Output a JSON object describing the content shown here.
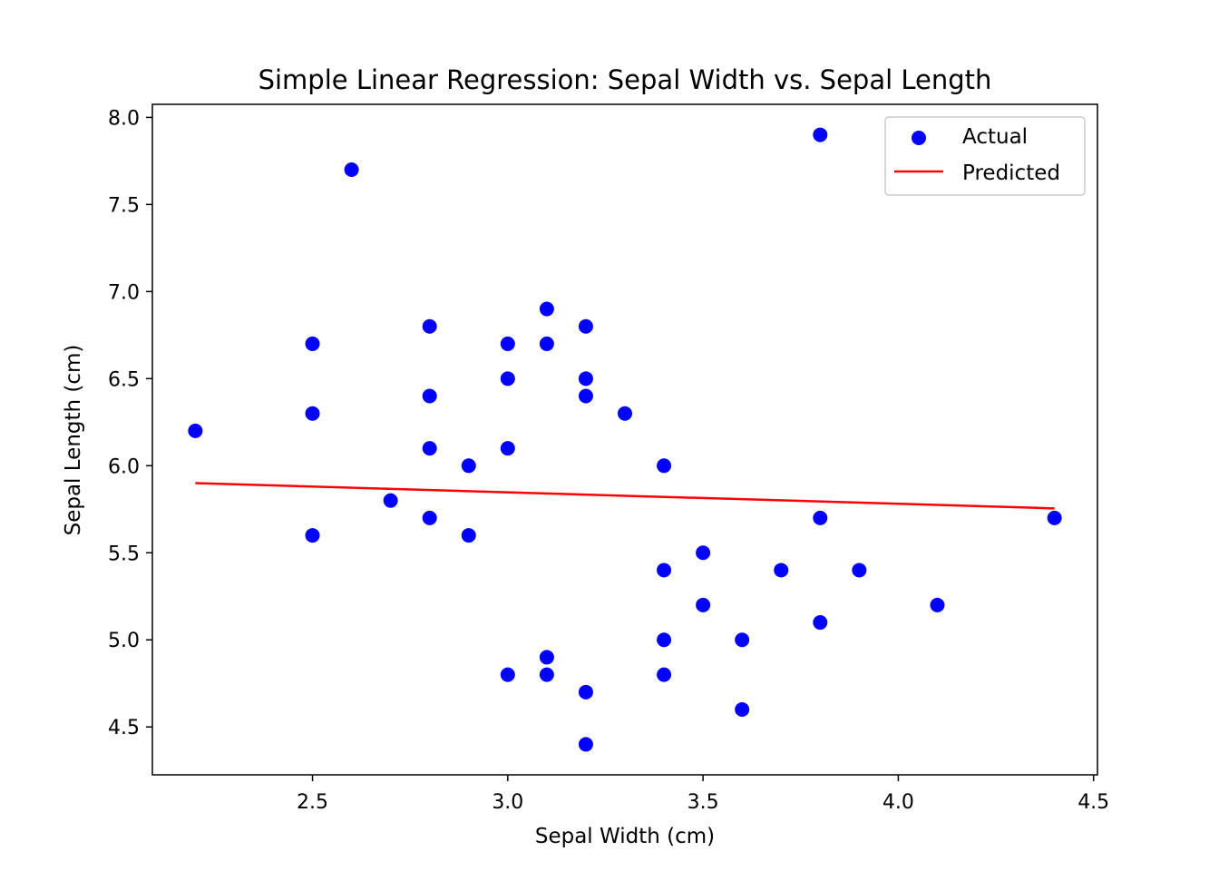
{
  "chart_data": {
    "type": "scatter",
    "title": "Simple Linear Regression: Sepal Width vs. Sepal Length",
    "xlabel": "Sepal Width (cm)",
    "ylabel": "Sepal Length (cm)",
    "xlim": [
      2.09,
      4.51
    ],
    "ylim": [
      4.225,
      8.075
    ],
    "xticks": [
      2.5,
      3.0,
      3.5,
      4.0,
      4.5
    ],
    "yticks": [
      4.5,
      5.0,
      5.5,
      6.0,
      6.5,
      7.0,
      7.5,
      8.0
    ],
    "xtick_labels": [
      "2.5",
      "3.0",
      "3.5",
      "4.0",
      "4.5"
    ],
    "ytick_labels": [
      "4.5",
      "5.0",
      "5.5",
      "6.0",
      "6.5",
      "7.0",
      "7.5",
      "8.0"
    ],
    "grid": false,
    "legend": {
      "placement": "top-right",
      "entries": [
        {
          "label": "Actual",
          "kind": "marker",
          "color": "#0000ff"
        },
        {
          "label": "Predicted",
          "kind": "line",
          "color": "#ff0000"
        }
      ]
    },
    "series": [
      {
        "name": "Actual",
        "kind": "scatter",
        "color": "#0000ff",
        "x": [
          2.2,
          2.5,
          2.5,
          2.5,
          2.6,
          2.7,
          2.8,
          2.8,
          2.8,
          2.8,
          2.9,
          2.9,
          3.0,
          3.0,
          3.0,
          3.0,
          3.1,
          3.1,
          3.1,
          3.1,
          3.2,
          3.2,
          3.2,
          3.2,
          3.2,
          3.3,
          3.4,
          3.4,
          3.4,
          3.4,
          3.5,
          3.5,
          3.6,
          3.6,
          3.7,
          3.8,
          3.8,
          3.8,
          3.9,
          4.1,
          4.4
        ],
        "y": [
          6.2,
          6.7,
          6.3,
          5.6,
          7.7,
          5.8,
          6.8,
          6.4,
          6.1,
          5.7,
          6.0,
          5.6,
          6.7,
          6.5,
          6.1,
          4.8,
          6.9,
          6.7,
          4.9,
          4.8,
          6.8,
          6.5,
          6.4,
          4.7,
          4.4,
          6.3,
          6.0,
          5.4,
          5.0,
          4.8,
          5.5,
          5.2,
          5.0,
          4.6,
          5.4,
          7.9,
          5.7,
          5.1,
          5.4,
          5.2,
          5.7
        ]
      },
      {
        "name": "Predicted",
        "kind": "line",
        "color": "#ff0000",
        "x": [
          2.2,
          4.4
        ],
        "y": [
          5.9,
          5.755
        ]
      }
    ]
  }
}
